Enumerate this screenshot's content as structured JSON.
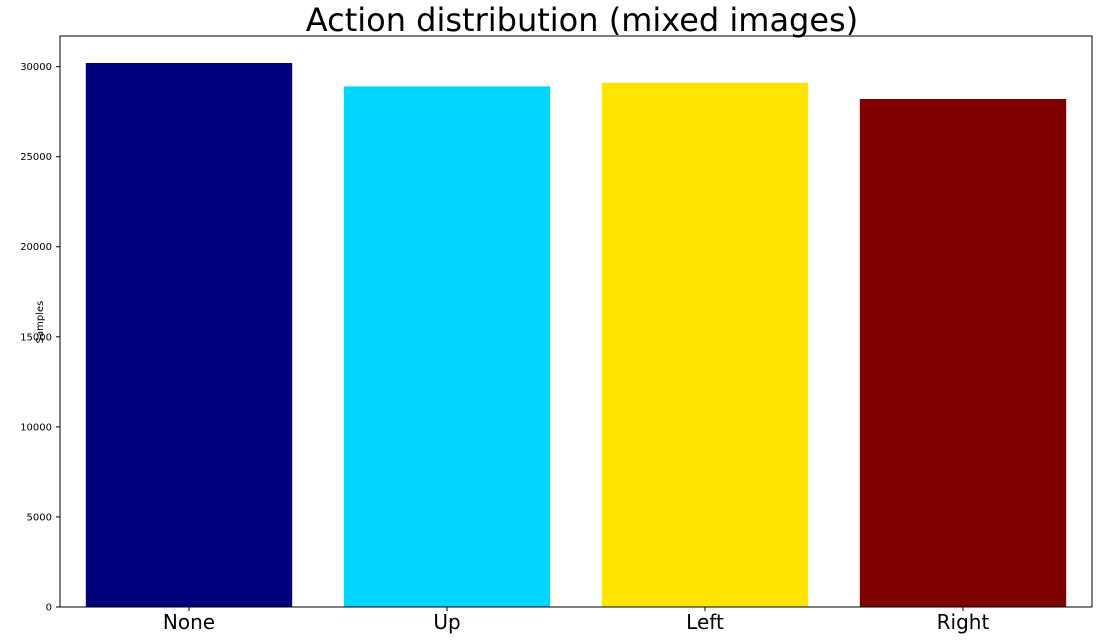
{
  "chart_data": {
    "type": "bar",
    "title": "Action distribution (mixed images)",
    "xlabel": "",
    "ylabel": "Samples",
    "categories": [
      "None",
      "Up",
      "Left",
      "Right"
    ],
    "values": [
      30200,
      28900,
      29100,
      28200
    ],
    "colors": [
      "#00007f",
      "#00d4ff",
      "#ffe500",
      "#7f0000"
    ],
    "ylim": [
      0,
      31700
    ],
    "yticks": [
      0,
      5000,
      10000,
      15000,
      20000,
      25000,
      30000
    ],
    "ytick_labels": [
      "0",
      "5000",
      "10000",
      "15000",
      "20000",
      "25000",
      "30000"
    ],
    "grid": false,
    "legend": "none"
  }
}
